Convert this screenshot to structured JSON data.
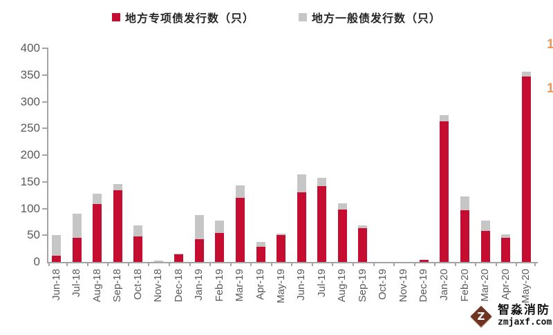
{
  "legend": {
    "items": [
      {
        "label": "地方专项债发行数（只）"
      },
      {
        "label": "地方一般债发行数（只）"
      }
    ]
  },
  "chart_data": {
    "type": "bar",
    "stacked": true,
    "title": "",
    "xlabel": "",
    "ylabel": "",
    "categories": [
      "Jun-18",
      "Jul-18",
      "Aug-18",
      "Sep-18",
      "Oct-18",
      "Nov-18",
      "Dec-18",
      "Jan-19",
      "Feb-19",
      "Mar-19",
      "Apr-19",
      "May-19",
      "Jun-19",
      "Jul-19",
      "Aug-19",
      "Sep-19",
      "Oct-19",
      "Nov-19",
      "Dec-19",
      "Jan-20",
      "Feb-20",
      "Mar-20",
      "Apr-20",
      "May-20"
    ],
    "series": [
      {
        "name": "地方专项债发行数（只）",
        "color": "#c40d31",
        "values": [
          12,
          45,
          108,
          134,
          48,
          0,
          14,
          42,
          54,
          120,
          28,
          50,
          130,
          142,
          98,
          63,
          0,
          0,
          4,
          263,
          97,
          58,
          45,
          347
        ]
      },
      {
        "name": "地方一般债发行数（只）",
        "color": "#c6c6c6",
        "values": [
          38,
          45,
          20,
          12,
          20,
          3,
          2,
          46,
          24,
          23,
          10,
          3,
          34,
          16,
          12,
          6,
          0,
          0,
          0,
          12,
          25,
          20,
          6,
          9
        ]
      }
    ],
    "ylim": [
      0,
      400
    ],
    "yticks": [
      0,
      50,
      100,
      150,
      200,
      250,
      300,
      350,
      400
    ],
    "grid": false,
    "legend_position": "top-center",
    "right_axis_clipped_labels": [
      "1",
      "1"
    ]
  },
  "watermark": {
    "logo_letter": "Z",
    "name": "智淼消防",
    "url": "zmjaxf.com"
  },
  "colors": {
    "axis": "#a3a3a3",
    "tick_text": "#595959",
    "secondary_axis_text": "#e8975c"
  }
}
